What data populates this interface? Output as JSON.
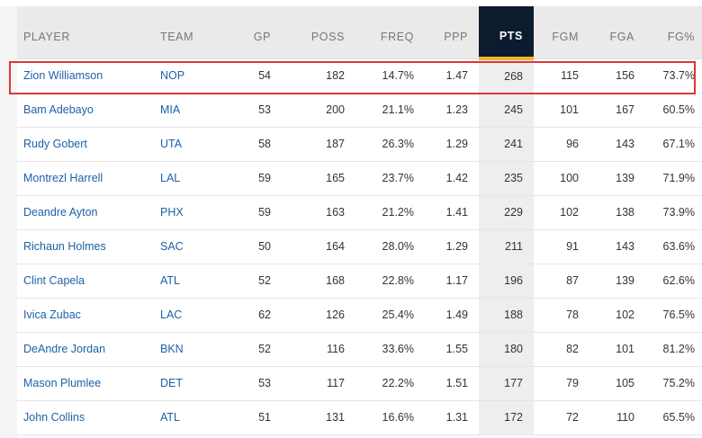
{
  "table": {
    "columns": [
      "PLAYER",
      "TEAM",
      "GP",
      "POSS",
      "FREQ",
      "PPP",
      "PTS",
      "FGM",
      "FGA",
      "FG%"
    ],
    "sorted_column": "PTS",
    "rows": [
      {
        "player": "Zion Williamson",
        "team": "NOP",
        "gp": "54",
        "poss": "182",
        "freq": "14.7%",
        "ppp": "1.47",
        "pts": "268",
        "fgm": "115",
        "fga": "156",
        "fgpct": "73.7%"
      },
      {
        "player": "Bam Adebayo",
        "team": "MIA",
        "gp": "53",
        "poss": "200",
        "freq": "21.1%",
        "ppp": "1.23",
        "pts": "245",
        "fgm": "101",
        "fga": "167",
        "fgpct": "60.5%"
      },
      {
        "player": "Rudy Gobert",
        "team": "UTA",
        "gp": "58",
        "poss": "187",
        "freq": "26.3%",
        "ppp": "1.29",
        "pts": "241",
        "fgm": "96",
        "fga": "143",
        "fgpct": "67.1%"
      },
      {
        "player": "Montrezl Harrell",
        "team": "LAL",
        "gp": "59",
        "poss": "165",
        "freq": "23.7%",
        "ppp": "1.42",
        "pts": "235",
        "fgm": "100",
        "fga": "139",
        "fgpct": "71.9%"
      },
      {
        "player": "Deandre Ayton",
        "team": "PHX",
        "gp": "59",
        "poss": "163",
        "freq": "21.2%",
        "ppp": "1.41",
        "pts": "229",
        "fgm": "102",
        "fga": "138",
        "fgpct": "73.9%"
      },
      {
        "player": "Richaun Holmes",
        "team": "SAC",
        "gp": "50",
        "poss": "164",
        "freq": "28.0%",
        "ppp": "1.29",
        "pts": "211",
        "fgm": "91",
        "fga": "143",
        "fgpct": "63.6%"
      },
      {
        "player": "Clint Capela",
        "team": "ATL",
        "gp": "52",
        "poss": "168",
        "freq": "22.8%",
        "ppp": "1.17",
        "pts": "196",
        "fgm": "87",
        "fga": "139",
        "fgpct": "62.6%"
      },
      {
        "player": "Ivica Zubac",
        "team": "LAC",
        "gp": "62",
        "poss": "126",
        "freq": "25.4%",
        "ppp": "1.49",
        "pts": "188",
        "fgm": "78",
        "fga": "102",
        "fgpct": "76.5%"
      },
      {
        "player": "DeAndre Jordan",
        "team": "BKN",
        "gp": "52",
        "poss": "116",
        "freq": "33.6%",
        "ppp": "1.55",
        "pts": "180",
        "fgm": "82",
        "fga": "101",
        "fgpct": "81.2%"
      },
      {
        "player": "Mason Plumlee",
        "team": "DET",
        "gp": "53",
        "poss": "117",
        "freq": "22.2%",
        "ppp": "1.51",
        "pts": "177",
        "fgm": "79",
        "fga": "105",
        "fgpct": "75.2%"
      },
      {
        "player": "John Collins",
        "team": "ATL",
        "gp": "51",
        "poss": "131",
        "freq": "16.6%",
        "ppp": "1.31",
        "pts": "172",
        "fgm": "72",
        "fga": "110",
        "fgpct": "65.5%"
      }
    ]
  },
  "highlighted_row": "Zion Williamson",
  "colors": {
    "sorted_header_bg": "#0d1b2e",
    "sorted_header_underline": "#f0b429",
    "link": "#1d61a8",
    "highlight_box": "#e0333a"
  }
}
